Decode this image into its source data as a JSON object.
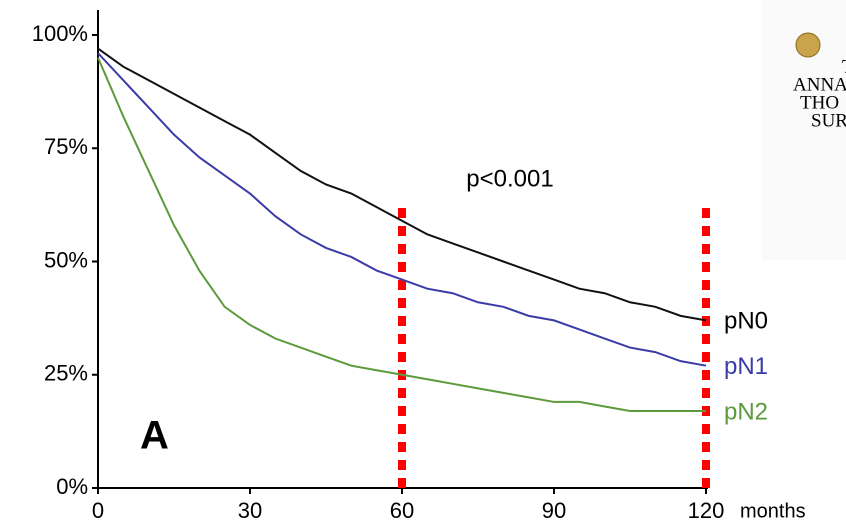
{
  "chart_data": {
    "type": "line",
    "annotation": "p<0.001",
    "panel_label": "A",
    "x_label": "months",
    "x": [
      0,
      5,
      10,
      15,
      20,
      25,
      30,
      35,
      40,
      45,
      50,
      55,
      60,
      65,
      70,
      75,
      80,
      85,
      90,
      95,
      100,
      105,
      110,
      115,
      120
    ],
    "series": [
      {
        "name": "pN0",
        "color": "#111111",
        "values": [
          97,
          93,
          90,
          87,
          84,
          81,
          78,
          74,
          70,
          67,
          65,
          62,
          59,
          56,
          54,
          52,
          50,
          48,
          46,
          44,
          43,
          41,
          40,
          38,
          37
        ]
      },
      {
        "name": "pN1",
        "color": "#3b3ba8",
        "values": [
          96,
          90,
          84,
          78,
          73,
          69,
          65,
          60,
          56,
          53,
          51,
          48,
          46,
          44,
          43,
          41,
          40,
          38,
          37,
          35,
          33,
          31,
          30,
          28,
          27
        ]
      },
      {
        "name": "pN2",
        "color": "#5c9a3c",
        "values": [
          95,
          82,
          70,
          58,
          48,
          40,
          36,
          33,
          31,
          29,
          27,
          26,
          25,
          24,
          23,
          22,
          21,
          20,
          19,
          19,
          18,
          17,
          17,
          17,
          17
        ]
      }
    ],
    "vlines": [
      60,
      120
    ],
    "vline_color": "#ff0000",
    "xlim": [
      0,
      120
    ],
    "ylim": [
      0,
      100
    ],
    "xticks": [
      0,
      30,
      60,
      90,
      120
    ],
    "yticks": [
      {
        "value": 0,
        "label": "0%"
      },
      {
        "value": 25,
        "label": "25%"
      },
      {
        "value": 50,
        "label": "50%"
      },
      {
        "value": 75,
        "label": "75%"
      },
      {
        "value": 100,
        "label": "100%"
      }
    ]
  },
  "cover": {
    "lines": [
      "T",
      "ANNA",
      "THO",
      "SUR"
    ]
  }
}
